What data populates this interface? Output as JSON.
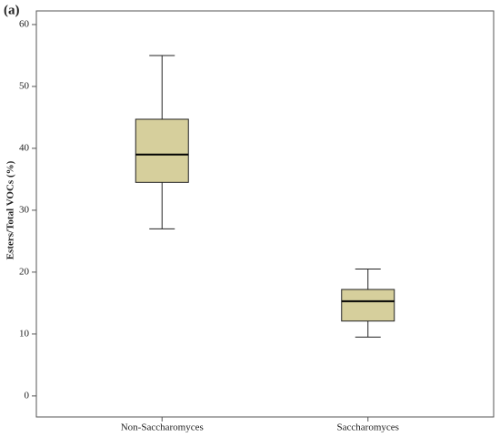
{
  "chart_data": {
    "type": "box",
    "title": "(a)",
    "y_label": "Esters/Total VOCs (%)",
    "categories": [
      "Non-Saccharomyces",
      "Saccharomyces"
    ],
    "min": [
      27,
      9.5
    ],
    "q1": [
      34.5,
      12.1
    ],
    "median": [
      39,
      15.3
    ],
    "q3": [
      44.7,
      17.2
    ],
    "max": [
      55,
      20.5
    ],
    "color": "#d6cf9c",
    "ylim": [
      -3.4,
      62.2
    ],
    "yticks": [
      0,
      10,
      20,
      30,
      40,
      50,
      60
    ]
  }
}
